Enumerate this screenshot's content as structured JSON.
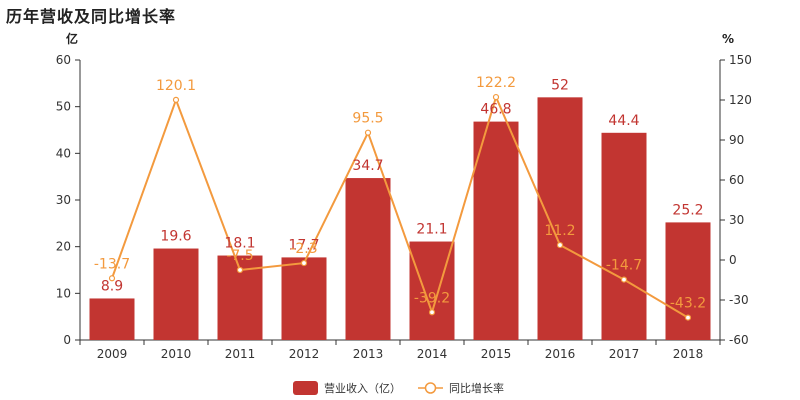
{
  "title": "历年营收及同比增长率",
  "chart_data": {
    "type": "bar",
    "categories": [
      "2009",
      "2010",
      "2011",
      "2012",
      "2013",
      "2014",
      "2015",
      "2016",
      "2017",
      "2018"
    ],
    "series": [
      {
        "name": "营业收入（亿）",
        "type": "bar",
        "axis": "left",
        "color": "#c23531",
        "values": [
          8.9,
          19.6,
          18.1,
          17.7,
          34.7,
          21.1,
          46.8,
          52,
          44.4,
          25.2
        ],
        "labels": [
          "8.9",
          "19.6",
          "18.1",
          "17.7",
          "34.7",
          "21.1",
          "46.8",
          "52",
          "44.4",
          "25.2"
        ]
      },
      {
        "name": "同比增长率",
        "type": "line",
        "axis": "right",
        "color": "#f39a3e",
        "values": [
          -13.7,
          120.1,
          -7.5,
          -2.3,
          95.5,
          -39.2,
          122.2,
          11.2,
          -14.7,
          -43.2
        ],
        "labels": [
          "-13.7",
          "120.1",
          "-7.5",
          "-2.3",
          "95.5",
          "-39.2",
          "122.2",
          "11.2",
          "-14.7",
          "-43.2"
        ]
      }
    ],
    "y_left": {
      "unit": "亿",
      "ylim": [
        0,
        60
      ],
      "ticks": [
        "0",
        "10",
        "20",
        "30",
        "40",
        "50",
        "60"
      ]
    },
    "y_right": {
      "unit": "%",
      "ylim": [
        -60,
        150
      ],
      "ticks": [
        "-60",
        "-30",
        "0",
        "30",
        "60",
        "90",
        "120",
        "150"
      ]
    },
    "grid": false,
    "legend_position": "bottom-center"
  }
}
